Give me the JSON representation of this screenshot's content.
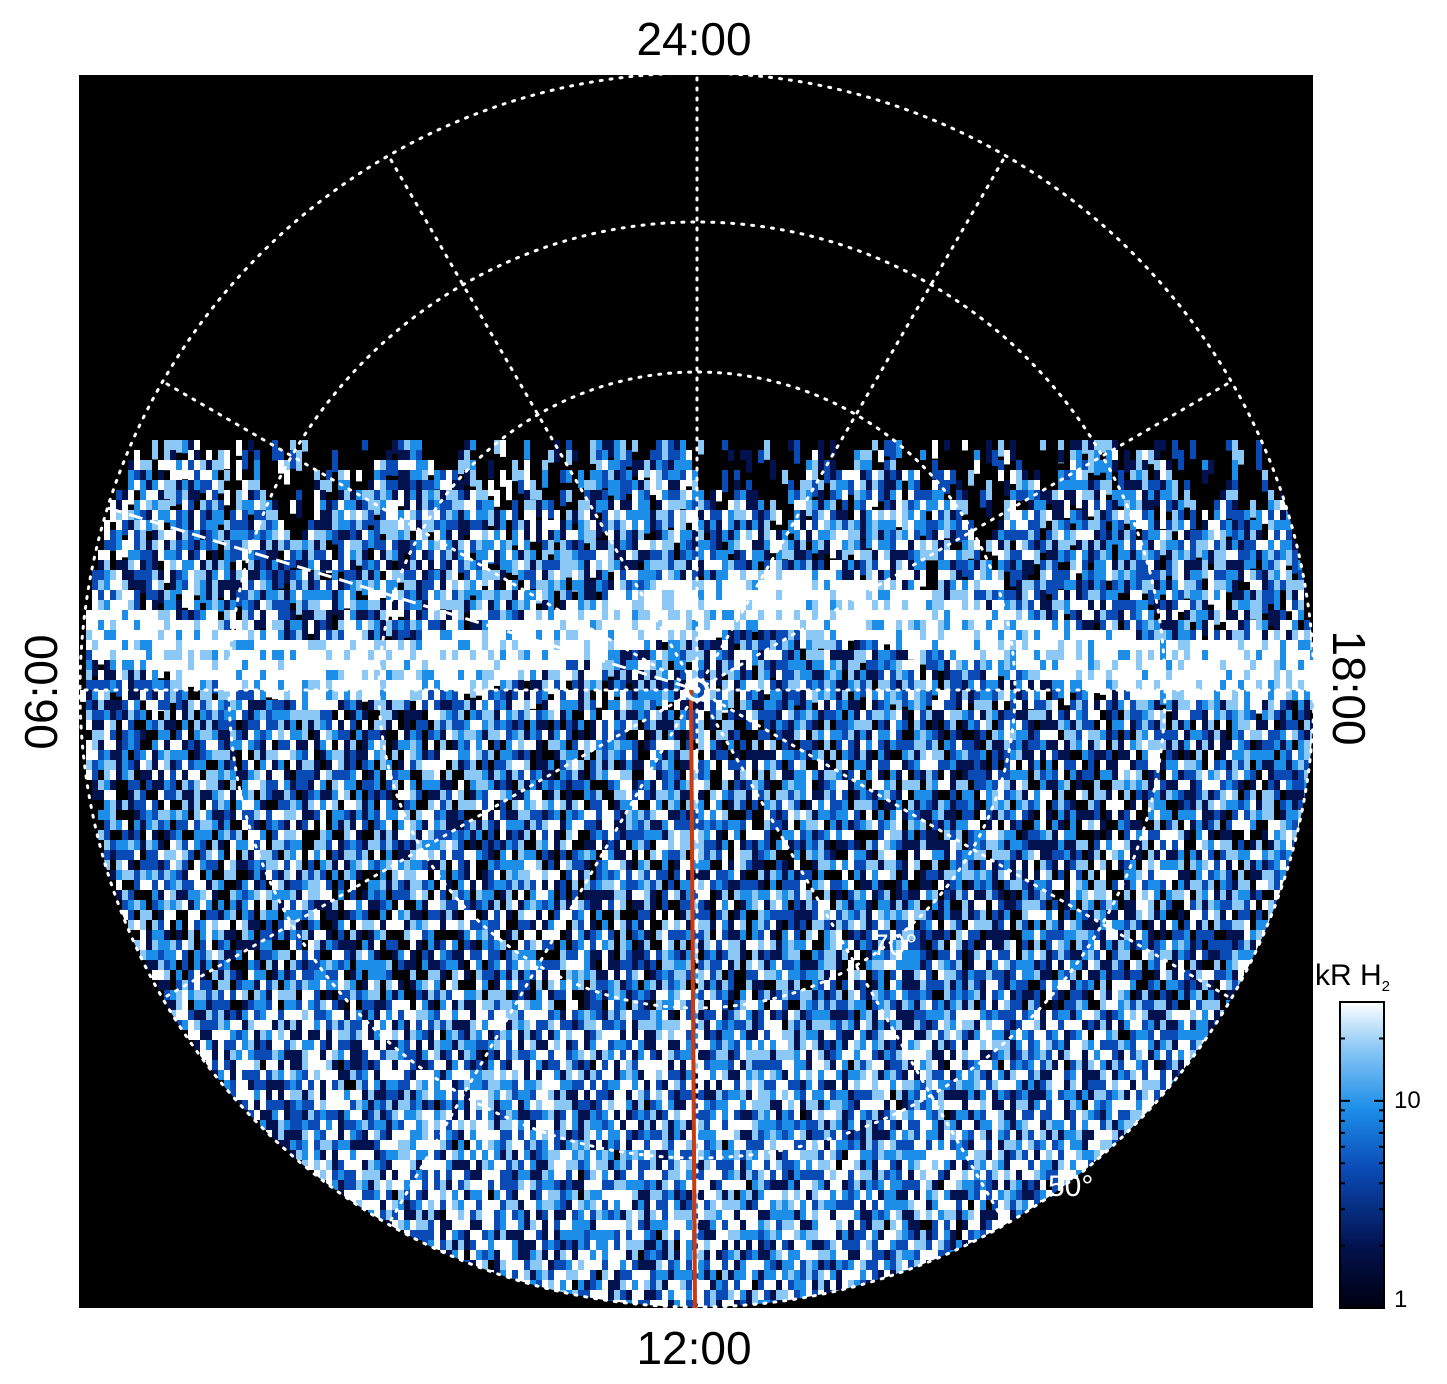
{
  "chart_data": {
    "type": "heatmap",
    "projection": "polar",
    "local_time_labels": {
      "top": "24:00",
      "bottom": "12:00",
      "left": "06:00",
      "right": "18:00"
    },
    "latitude_labels": [
      "70°",
      "50°"
    ],
    "colorbar": {
      "title": "kR H",
      "title_subscript": "2",
      "scale": "log",
      "range": [
        1,
        30
      ],
      "tick_labels": [
        "1",
        "10"
      ],
      "colors": [
        "#000010",
        "#02124e",
        "#0a4ab4",
        "#1c8ee8",
        "#8cc8f6",
        "#ffffff"
      ]
    },
    "grid": true,
    "colors": {
      "background": "#000000",
      "grid": "#ffffff",
      "meridian_line": "#cc3a10"
    }
  }
}
